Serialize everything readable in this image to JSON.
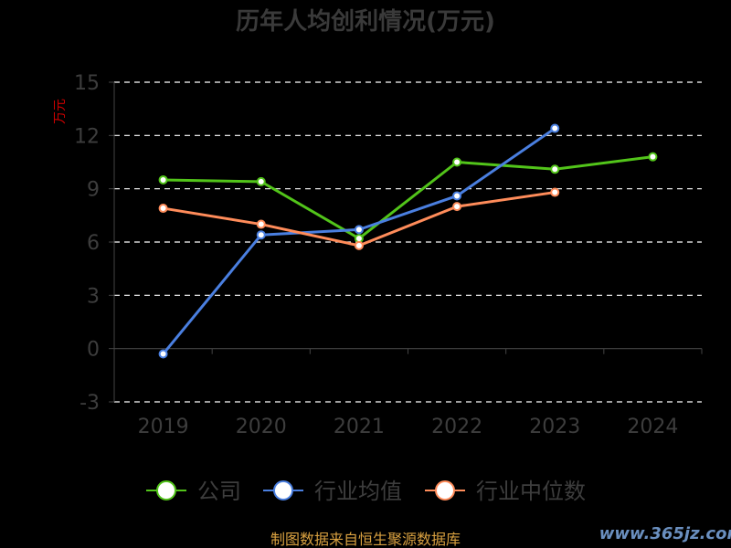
{
  "chart_data": {
    "type": "line",
    "title": "历年人均创利情况(万元)",
    "ylabel": "万元",
    "categories": [
      "2019",
      "2020",
      "2021",
      "2022",
      "2023",
      "2024"
    ],
    "yticks": [
      -3,
      0,
      3,
      6,
      9,
      12,
      15
    ],
    "ylim": [
      -3,
      15
    ],
    "grid": true,
    "legend_position": "bottom",
    "series": [
      {
        "name": "公司",
        "color": "#52c41a",
        "values": [
          9.5,
          9.4,
          6.2,
          10.5,
          10.1,
          10.8
        ]
      },
      {
        "name": "行业均值",
        "color": "#4a7fe0",
        "values": [
          -0.3,
          6.4,
          6.7,
          8.6,
          12.4,
          null
        ]
      },
      {
        "name": "行业中位数",
        "color": "#ff8c5a",
        "values": [
          7.9,
          7.0,
          5.8,
          8.0,
          8.8,
          null
        ]
      }
    ]
  },
  "footer": {
    "source": "制图数据来自恒生聚源数据库",
    "watermark": "www.365jz.com"
  }
}
